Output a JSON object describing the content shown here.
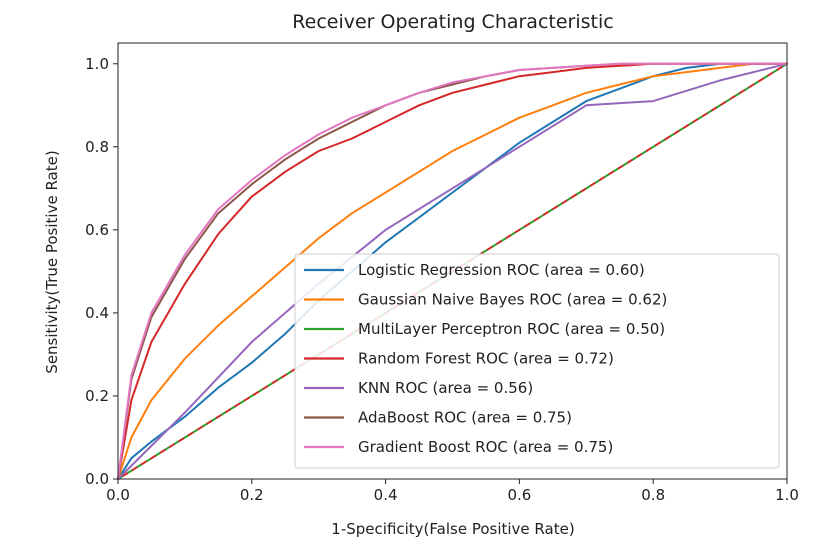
{
  "chart_data": {
    "type": "line",
    "title": "Receiver Operating Characteristic",
    "xlabel": "1-Specificity(False Positive Rate)",
    "ylabel": "Sensitivity(True Positive Rate)",
    "xlim": [
      0,
      1
    ],
    "ylim": [
      0,
      1.05
    ],
    "xticks": [
      "0.0",
      "0.2",
      "0.4",
      "0.6",
      "0.8",
      "1.0"
    ],
    "yticks": [
      "0.0",
      "0.2",
      "0.4",
      "0.6",
      "0.8",
      "1.0"
    ],
    "legend_position": "lower-right",
    "grid": false,
    "series": [
      {
        "name": "Logistic Regression ROC (area = 0.60)",
        "color": "#1f77b4",
        "x": [
          0,
          0.02,
          0.05,
          0.1,
          0.15,
          0.2,
          0.25,
          0.3,
          0.35,
          0.4,
          0.45,
          0.5,
          0.55,
          0.6,
          0.65,
          0.7,
          0.75,
          0.8,
          0.85,
          0.9,
          0.95,
          1.0
        ],
        "y": [
          0,
          0.05,
          0.09,
          0.15,
          0.22,
          0.28,
          0.35,
          0.43,
          0.5,
          0.57,
          0.63,
          0.69,
          0.75,
          0.81,
          0.86,
          0.91,
          0.94,
          0.97,
          0.99,
          1.0,
          1.0,
          1.0
        ]
      },
      {
        "name": "Gaussian Naive Bayes ROC (area = 0.62)",
        "color": "#ff7f0e",
        "x": [
          0,
          0.02,
          0.05,
          0.1,
          0.15,
          0.2,
          0.25,
          0.3,
          0.35,
          0.4,
          0.45,
          0.5,
          0.55,
          0.6,
          0.65,
          0.7,
          0.75,
          0.8,
          0.85,
          0.9,
          0.95,
          1.0
        ],
        "y": [
          0,
          0.1,
          0.19,
          0.29,
          0.37,
          0.44,
          0.51,
          0.58,
          0.64,
          0.69,
          0.74,
          0.79,
          0.83,
          0.87,
          0.9,
          0.93,
          0.95,
          0.97,
          0.98,
          0.99,
          1.0,
          1.0
        ]
      },
      {
        "name": "MultiLayer Perceptron ROC (area = 0.50)",
        "color": "#2ca02c",
        "x": [
          0,
          1.0
        ],
        "y": [
          0,
          1.0
        ]
      },
      {
        "name": "Random Forest ROC (area = 0.72)",
        "color": "#d62728",
        "x": [
          0,
          0.02,
          0.05,
          0.1,
          0.15,
          0.2,
          0.25,
          0.3,
          0.35,
          0.4,
          0.45,
          0.5,
          0.55,
          0.6,
          0.65,
          0.7,
          0.75,
          0.8,
          0.85,
          0.9,
          0.95,
          1.0
        ],
        "y": [
          0,
          0.19,
          0.33,
          0.47,
          0.59,
          0.68,
          0.74,
          0.79,
          0.82,
          0.86,
          0.9,
          0.93,
          0.95,
          0.97,
          0.98,
          0.99,
          0.995,
          1.0,
          1.0,
          1.0,
          1.0,
          1.0
        ]
      },
      {
        "name": "KNN ROC (area = 0.56)",
        "color": "#9467bd",
        "x": [
          0,
          0.1,
          0.2,
          0.3,
          0.4,
          0.5,
          0.6,
          0.7,
          0.8,
          0.9,
          1.0
        ],
        "y": [
          0,
          0.16,
          0.33,
          0.47,
          0.6,
          0.7,
          0.8,
          0.9,
          0.91,
          0.96,
          1.0
        ]
      },
      {
        "name": "AdaBoost ROC (area = 0.75)",
        "color": "#8c564b",
        "x": [
          0,
          0.02,
          0.05,
          0.1,
          0.15,
          0.2,
          0.25,
          0.3,
          0.35,
          0.4,
          0.45,
          0.5,
          0.55,
          0.6,
          0.65,
          0.7,
          0.75,
          0.8,
          0.85,
          0.9,
          0.95,
          1.0
        ],
        "y": [
          0,
          0.24,
          0.39,
          0.53,
          0.64,
          0.71,
          0.77,
          0.82,
          0.86,
          0.9,
          0.93,
          0.95,
          0.97,
          0.985,
          0.99,
          0.995,
          1.0,
          1.0,
          1.0,
          1.0,
          1.0,
          1.0
        ]
      },
      {
        "name": "Gradient Boost ROC (area = 0.75)",
        "color": "#e377c2",
        "x": [
          0,
          0.02,
          0.05,
          0.1,
          0.15,
          0.2,
          0.25,
          0.3,
          0.35,
          0.4,
          0.45,
          0.5,
          0.55,
          0.6,
          0.65,
          0.7,
          0.75,
          0.8,
          0.85,
          0.9,
          0.95,
          1.0
        ],
        "y": [
          0,
          0.25,
          0.4,
          0.54,
          0.65,
          0.72,
          0.78,
          0.83,
          0.87,
          0.9,
          0.93,
          0.955,
          0.97,
          0.985,
          0.99,
          0.995,
          1.0,
          1.0,
          1.0,
          1.0,
          1.0,
          1.0
        ]
      }
    ]
  }
}
